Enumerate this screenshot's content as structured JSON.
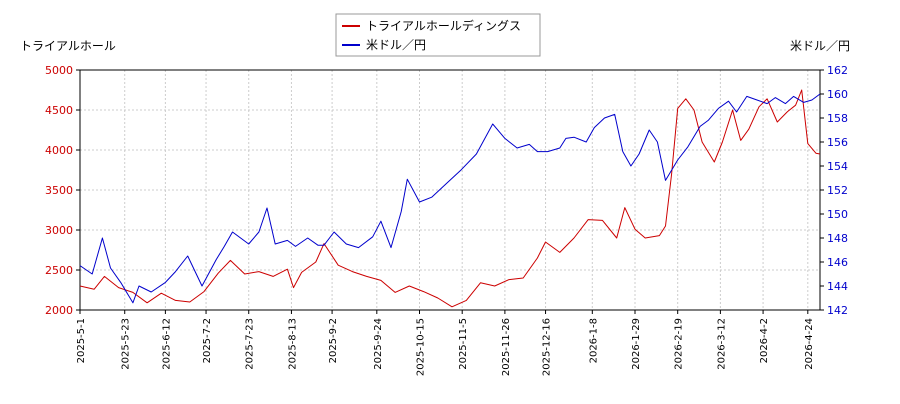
{
  "chart_data": {
    "type": "line",
    "x_ticks": [
      "2025-5-1",
      "2025-5-23",
      "2025-6-12",
      "2025-7-2",
      "2025-7-23",
      "2025-8-13",
      "2025-9-2",
      "2025-9-24",
      "2025-10-15",
      "2025-11-5",
      "2025-11-26",
      "2025-12-16",
      "2026-1-8",
      "2026-1-29",
      "2026-2-19",
      "2026-3-12",
      "2026-4-2",
      "2026-4-24"
    ],
    "x_start": "2025-05-01",
    "x_end": "2026-04-30",
    "left_axis": {
      "label": "トライアルホール",
      "ylim": [
        2000,
        5000
      ],
      "ticks": [
        2000,
        2500,
        3000,
        3500,
        4000,
        4500,
        5000
      ]
    },
    "right_axis": {
      "label": "米ドル／円",
      "ylim": [
        142,
        162
      ],
      "ticks": [
        142,
        144,
        146,
        148,
        150,
        152,
        154,
        156,
        158,
        160,
        162
      ]
    },
    "legend_position": "top-center",
    "grid": true,
    "series": [
      {
        "name": "トライアルホールディングス",
        "axis": "left",
        "color": "#cc0000",
        "points": [
          [
            "2025-05-01",
            2300
          ],
          [
            "2025-05-08",
            2260
          ],
          [
            "2025-05-13",
            2420
          ],
          [
            "2025-05-20",
            2280
          ],
          [
            "2025-05-27",
            2220
          ],
          [
            "2025-06-03",
            2090
          ],
          [
            "2025-06-10",
            2210
          ],
          [
            "2025-06-17",
            2120
          ],
          [
            "2025-06-24",
            2100
          ],
          [
            "2025-07-01",
            2230
          ],
          [
            "2025-07-08",
            2460
          ],
          [
            "2025-07-14",
            2620
          ],
          [
            "2025-07-21",
            2450
          ],
          [
            "2025-07-28",
            2480
          ],
          [
            "2025-08-04",
            2420
          ],
          [
            "2025-08-11",
            2510
          ],
          [
            "2025-08-14",
            2280
          ],
          [
            "2025-08-18",
            2470
          ],
          [
            "2025-08-25",
            2600
          ],
          [
            "2025-08-29",
            2830
          ],
          [
            "2025-09-05",
            2560
          ],
          [
            "2025-09-12",
            2480
          ],
          [
            "2025-09-19",
            2420
          ],
          [
            "2025-09-26",
            2370
          ],
          [
            "2025-10-03",
            2220
          ],
          [
            "2025-10-10",
            2300
          ],
          [
            "2025-10-17",
            2230
          ],
          [
            "2025-10-24",
            2150
          ],
          [
            "2025-10-31",
            2040
          ],
          [
            "2025-11-07",
            2120
          ],
          [
            "2025-11-14",
            2340
          ],
          [
            "2025-11-21",
            2300
          ],
          [
            "2025-11-28",
            2380
          ],
          [
            "2025-12-05",
            2400
          ],
          [
            "2025-12-12",
            2650
          ],
          [
            "2025-12-16",
            2850
          ],
          [
            "2025-12-23",
            2720
          ],
          [
            "2025-12-30",
            2900
          ],
          [
            "2026-01-06",
            3130
          ],
          [
            "2026-01-13",
            3120
          ],
          [
            "2026-01-20",
            2900
          ],
          [
            "2026-01-24",
            3280
          ],
          [
            "2026-01-29",
            3010
          ],
          [
            "2026-02-03",
            2900
          ],
          [
            "2026-02-10",
            2930
          ],
          [
            "2026-02-13",
            3050
          ],
          [
            "2026-02-16",
            3700
          ],
          [
            "2026-02-19",
            4520
          ],
          [
            "2026-02-23",
            4640
          ],
          [
            "2026-02-27",
            4500
          ],
          [
            "2026-03-03",
            4100
          ],
          [
            "2026-03-09",
            3850
          ],
          [
            "2026-03-13",
            4100
          ],
          [
            "2026-03-18",
            4500
          ],
          [
            "2026-03-22",
            4120
          ],
          [
            "2026-03-26",
            4260
          ],
          [
            "2026-03-31",
            4540
          ],
          [
            "2026-04-04",
            4640
          ],
          [
            "2026-04-09",
            4350
          ],
          [
            "2026-04-14",
            4480
          ],
          [
            "2026-04-18",
            4560
          ],
          [
            "2026-04-21",
            4750
          ],
          [
            "2026-04-24",
            4080
          ],
          [
            "2026-04-28",
            3960
          ],
          [
            "2026-04-30",
            3950
          ]
        ]
      },
      {
        "name": "米ドル／円",
        "axis": "right",
        "color": "#0000cc",
        "points": [
          [
            "2025-05-01",
            145.7
          ],
          [
            "2025-05-07",
            145.0
          ],
          [
            "2025-05-12",
            148.0
          ],
          [
            "2025-05-16",
            145.5
          ],
          [
            "2025-05-21",
            144.3
          ],
          [
            "2025-05-27",
            142.6
          ],
          [
            "2025-05-30",
            144.0
          ],
          [
            "2025-06-05",
            143.5
          ],
          [
            "2025-06-12",
            144.3
          ],
          [
            "2025-06-17",
            145.2
          ],
          [
            "2025-06-23",
            146.5
          ],
          [
            "2025-06-30",
            144.0
          ],
          [
            "2025-07-07",
            146.2
          ],
          [
            "2025-07-11",
            147.3
          ],
          [
            "2025-07-15",
            148.5
          ],
          [
            "2025-07-19",
            148.0
          ],
          [
            "2025-07-23",
            147.5
          ],
          [
            "2025-07-28",
            148.5
          ],
          [
            "2025-08-01",
            150.5
          ],
          [
            "2025-08-05",
            147.5
          ],
          [
            "2025-08-11",
            147.8
          ],
          [
            "2025-08-15",
            147.3
          ],
          [
            "2025-08-21",
            148.0
          ],
          [
            "2025-08-26",
            147.4
          ],
          [
            "2025-08-29",
            147.4
          ],
          [
            "2025-09-03",
            148.5
          ],
          [
            "2025-09-09",
            147.5
          ],
          [
            "2025-09-15",
            147.2
          ],
          [
            "2025-09-22",
            148.1
          ],
          [
            "2025-09-26",
            149.4
          ],
          [
            "2025-10-01",
            147.2
          ],
          [
            "2025-10-06",
            150.2
          ],
          [
            "2025-10-09",
            152.9
          ],
          [
            "2025-10-15",
            151.0
          ],
          [
            "2025-10-21",
            151.4
          ],
          [
            "2025-10-28",
            152.5
          ],
          [
            "2025-11-04",
            153.6
          ],
          [
            "2025-11-12",
            155.0
          ],
          [
            "2025-11-20",
            157.5
          ],
          [
            "2025-11-26",
            156.3
          ],
          [
            "2025-12-02",
            155.5
          ],
          [
            "2025-12-08",
            155.8
          ],
          [
            "2025-12-12",
            155.2
          ],
          [
            "2025-12-17",
            155.2
          ],
          [
            "2025-12-23",
            155.5
          ],
          [
            "2025-12-26",
            156.3
          ],
          [
            "2025-12-30",
            156.4
          ],
          [
            "2026-01-05",
            156.0
          ],
          [
            "2026-01-09",
            157.2
          ],
          [
            "2026-01-14",
            158.0
          ],
          [
            "2026-01-19",
            158.3
          ],
          [
            "2026-01-23",
            155.2
          ],
          [
            "2026-01-27",
            154.0
          ],
          [
            "2026-01-31",
            155.0
          ],
          [
            "2026-02-05",
            157.0
          ],
          [
            "2026-02-09",
            156.0
          ],
          [
            "2026-02-13",
            152.8
          ],
          [
            "2026-02-19",
            154.5
          ],
          [
            "2026-02-24",
            155.6
          ],
          [
            "2026-03-02",
            157.3
          ],
          [
            "2026-03-06",
            157.8
          ],
          [
            "2026-03-11",
            158.8
          ],
          [
            "2026-03-16",
            159.4
          ],
          [
            "2026-03-20",
            158.5
          ],
          [
            "2026-03-25",
            159.8
          ],
          [
            "2026-03-30",
            159.5
          ],
          [
            "2026-04-04",
            159.2
          ],
          [
            "2026-04-08",
            159.7
          ],
          [
            "2026-04-13",
            159.2
          ],
          [
            "2026-04-17",
            159.8
          ],
          [
            "2026-04-22",
            159.3
          ],
          [
            "2026-04-26",
            159.5
          ],
          [
            "2026-04-30",
            160.0
          ]
        ]
      }
    ]
  }
}
